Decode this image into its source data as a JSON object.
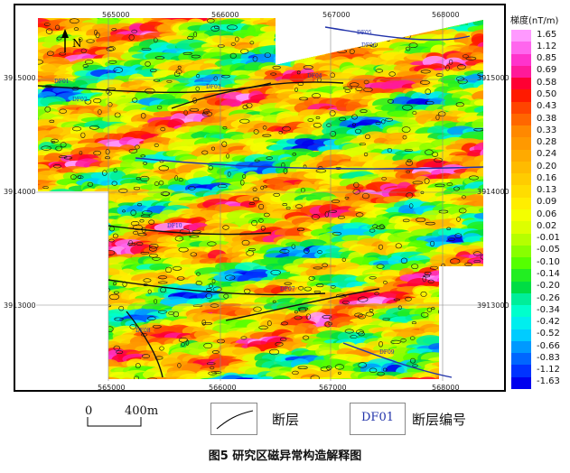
{
  "map": {
    "north_label": "N",
    "x_ticks": [
      "565000",
      "566000",
      "567000",
      "568000"
    ],
    "y_ticks": [
      "3915000",
      "3914000",
      "3913000"
    ],
    "fault_labels": [
      "DF01",
      "DF02",
      "DF03",
      "DF04",
      "DF05",
      "DF06",
      "DF07",
      "DF08",
      "DF09",
      "DF10"
    ]
  },
  "colorbar": {
    "title": "梯度(nT/m)",
    "values": [
      "1.65",
      "1.12",
      "0.85",
      "0.69",
      "0.58",
      "0.50",
      "0.43",
      "0.38",
      "0.33",
      "0.28",
      "0.24",
      "0.20",
      "0.16",
      "0.13",
      "0.09",
      "0.06",
      "0.02",
      "-0.01",
      "-0.05",
      "-0.10",
      "-0.14",
      "-0.20",
      "-0.26",
      "-0.34",
      "-0.42",
      "-0.52",
      "-0.66",
      "-0.83",
      "-1.12",
      "-1.63"
    ],
    "colors": [
      "#ff99ff",
      "#ff66ee",
      "#ff33cc",
      "#ff1a99",
      "#ff0033",
      "#ff1a00",
      "#ff4400",
      "#ff6600",
      "#ff8800",
      "#ff9900",
      "#ffaa00",
      "#ffbb00",
      "#ffcc00",
      "#ffdd00",
      "#ffee00",
      "#f4ff00",
      "#ddff00",
      "#b5ff00",
      "#88ff00",
      "#55ff00",
      "#22ee22",
      "#00dd44",
      "#00ee99",
      "#00ffcc",
      "#00eeee",
      "#00ccff",
      "#0099ff",
      "#0066ff",
      "#0033ff",
      "#0000ee"
    ]
  },
  "legend": {
    "scale_zero": "0",
    "scale_value": "400m",
    "fault_label": "断层",
    "fault_code_sample": "DF01",
    "fault_code_label": "断层编号"
  },
  "caption": "图5  研究区磁异常构造解释图"
}
